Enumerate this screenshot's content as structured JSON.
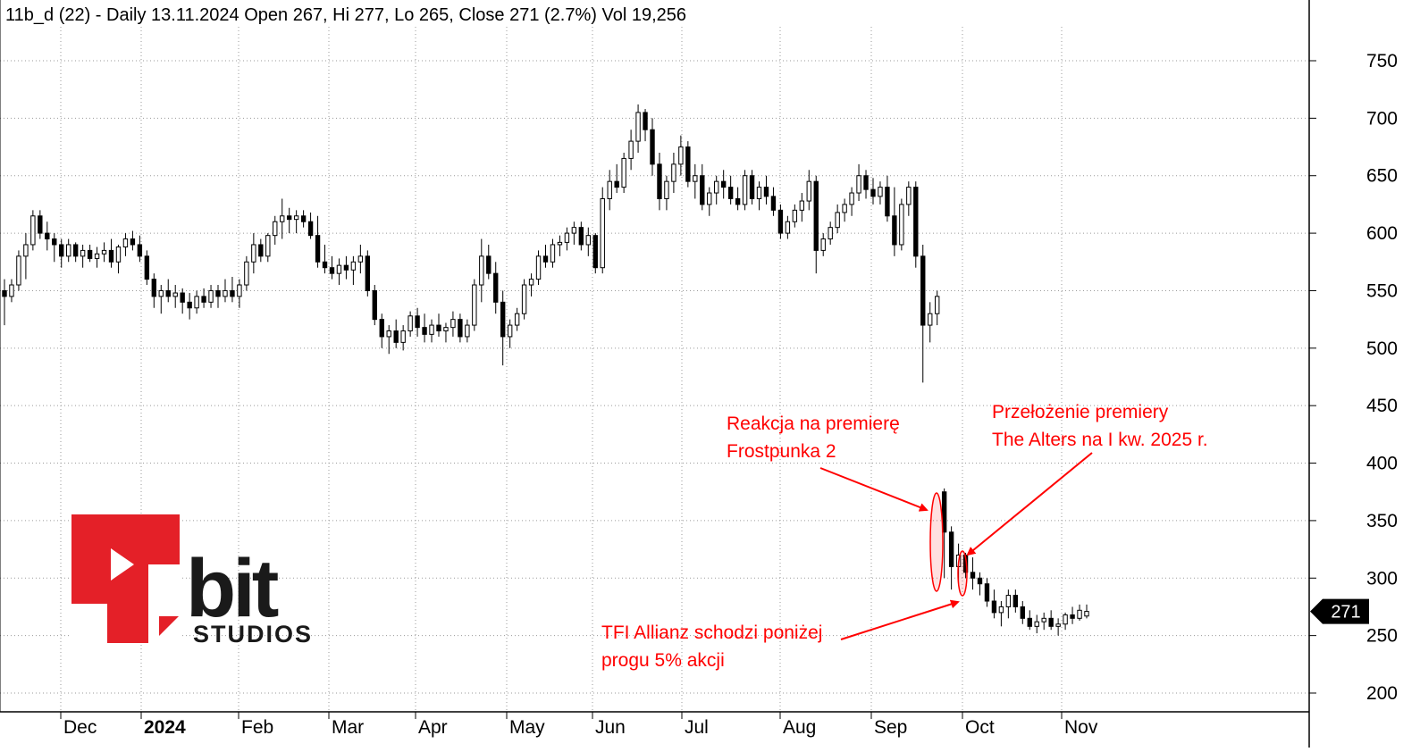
{
  "chart_data": {
    "type": "candlestick",
    "title": "11b_d (22) - Daily 13.11.2024 Open 267, Hi 277, Lo 265, Close 271 (2.7%) Vol 19,256",
    "last_price_label": "271",
    "yticks": [
      200,
      250,
      300,
      350,
      400,
      450,
      500,
      550,
      600,
      650,
      700,
      750
    ],
    "ylim": [
      190,
      790
    ],
    "xlabels": [
      "Dec",
      "2024",
      "Feb",
      "Mar",
      "Apr",
      "May",
      "Jun",
      "Jul",
      "Aug",
      "Sep",
      "Oct",
      "Nov"
    ],
    "grid": true,
    "annotations": [
      {
        "text_lines": [
          "Reakcja na premierę",
          "Frostpunka 2"
        ]
      },
      {
        "text_lines": [
          "Przełożenie premiery",
          "The Alters na I kw. 2025 r."
        ]
      },
      {
        "text_lines": [
          "TFI Allianz schodzi poniżej",
          "progu 5% akcji"
        ]
      }
    ],
    "series": [
      {
        "values": [
          [
            550,
            560,
            520,
            545
          ],
          [
            545,
            560,
            540,
            555
          ],
          [
            555,
            585,
            550,
            580
          ],
          [
            580,
            600,
            560,
            590
          ],
          [
            590,
            620,
            585,
            615
          ],
          [
            615,
            620,
            595,
            600
          ],
          [
            600,
            610,
            585,
            595
          ],
          [
            595,
            600,
            575,
            590
          ],
          [
            590,
            595,
            570,
            580
          ],
          [
            580,
            595,
            575,
            590
          ],
          [
            590,
            592,
            575,
            580
          ],
          [
            580,
            590,
            570,
            585
          ],
          [
            585,
            590,
            575,
            578
          ],
          [
            578,
            588,
            570,
            582
          ],
          [
            582,
            592,
            575,
            585
          ],
          [
            585,
            595,
            570,
            575
          ],
          [
            575,
            590,
            565,
            588
          ],
          [
            588,
            600,
            580,
            595
          ],
          [
            595,
            602,
            585,
            590
          ],
          [
            590,
            598,
            575,
            580
          ],
          [
            580,
            585,
            555,
            560
          ],
          [
            560,
            565,
            535,
            545
          ],
          [
            545,
            555,
            530,
            550
          ],
          [
            550,
            560,
            540,
            545
          ],
          [
            545,
            555,
            535,
            548
          ],
          [
            548,
            552,
            530,
            540
          ],
          [
            540,
            548,
            525,
            535
          ],
          [
            535,
            550,
            530,
            545
          ],
          [
            545,
            552,
            535,
            540
          ],
          [
            540,
            555,
            535,
            550
          ],
          [
            550,
            555,
            535,
            545
          ],
          [
            545,
            560,
            540,
            550
          ],
          [
            550,
            562,
            540,
            545
          ],
          [
            545,
            560,
            535,
            555
          ],
          [
            555,
            580,
            550,
            575
          ],
          [
            575,
            600,
            565,
            590
          ],
          [
            590,
            595,
            575,
            580
          ],
          [
            580,
            600,
            575,
            598
          ],
          [
            598,
            615,
            590,
            610
          ],
          [
            610,
            630,
            595,
            615
          ],
          [
            615,
            622,
            600,
            612
          ],
          [
            612,
            620,
            600,
            615
          ],
          [
            615,
            620,
            605,
            610
          ],
          [
            610,
            618,
            595,
            598
          ],
          [
            598,
            615,
            570,
            575
          ],
          [
            575,
            590,
            565,
            570
          ],
          [
            570,
            580,
            560,
            565
          ],
          [
            565,
            578,
            555,
            572
          ],
          [
            572,
            580,
            560,
            568
          ],
          [
            568,
            580,
            555,
            575
          ],
          [
            575,
            590,
            565,
            580
          ],
          [
            580,
            585,
            545,
            550
          ],
          [
            550,
            555,
            520,
            525
          ],
          [
            525,
            530,
            500,
            510
          ],
          [
            510,
            520,
            495,
            515
          ],
          [
            515,
            525,
            500,
            505
          ],
          [
            505,
            520,
            498,
            515
          ],
          [
            515,
            532,
            510,
            528
          ],
          [
            528,
            535,
            510,
            518
          ],
          [
            518,
            530,
            505,
            512
          ],
          [
            512,
            525,
            505,
            520
          ],
          [
            520,
            530,
            510,
            515
          ],
          [
            515,
            522,
            505,
            518
          ],
          [
            518,
            532,
            510,
            525
          ],
          [
            525,
            530,
            505,
            510
          ],
          [
            510,
            525,
            505,
            520
          ],
          [
            520,
            560,
            515,
            555
          ],
          [
            555,
            595,
            540,
            580
          ],
          [
            580,
            590,
            560,
            565
          ],
          [
            565,
            575,
            530,
            540
          ],
          [
            540,
            550,
            485,
            510
          ],
          [
            510,
            525,
            500,
            520
          ],
          [
            520,
            535,
            515,
            530
          ],
          [
            530,
            560,
            525,
            555
          ],
          [
            555,
            565,
            545,
            560
          ],
          [
            560,
            585,
            555,
            580
          ],
          [
            580,
            590,
            570,
            575
          ],
          [
            575,
            595,
            570,
            590
          ],
          [
            590,
            598,
            580,
            592
          ],
          [
            592,
            605,
            585,
            600
          ],
          [
            600,
            610,
            590,
            605
          ],
          [
            605,
            610,
            585,
            590
          ],
          [
            590,
            605,
            580,
            598
          ],
          [
            598,
            600,
            565,
            570
          ],
          [
            570,
            640,
            565,
            630
          ],
          [
            630,
            655,
            620,
            645
          ],
          [
            645,
            660,
            635,
            640
          ],
          [
            640,
            670,
            635,
            665
          ],
          [
            665,
            690,
            655,
            680
          ],
          [
            680,
            712,
            670,
            705
          ],
          [
            705,
            708,
            680,
            690
          ],
          [
            690,
            700,
            650,
            660
          ],
          [
            660,
            670,
            620,
            630
          ],
          [
            630,
            650,
            620,
            645
          ],
          [
            645,
            670,
            635,
            660
          ],
          [
            660,
            685,
            650,
            675
          ],
          [
            675,
            680,
            640,
            645
          ],
          [
            645,
            660,
            630,
            650
          ],
          [
            650,
            660,
            620,
            625
          ],
          [
            625,
            640,
            615,
            635
          ],
          [
            635,
            650,
            625,
            645
          ],
          [
            645,
            655,
            630,
            640
          ],
          [
            640,
            650,
            625,
            630
          ],
          [
            630,
            640,
            620,
            625
          ],
          [
            625,
            655,
            620,
            650
          ],
          [
            650,
            655,
            625,
            630
          ],
          [
            630,
            645,
            620,
            640
          ],
          [
            640,
            650,
            625,
            632
          ],
          [
            632,
            640,
            615,
            620
          ],
          [
            620,
            625,
            595,
            600
          ],
          [
            600,
            615,
            595,
            610
          ],
          [
            610,
            625,
            605,
            620
          ],
          [
            620,
            635,
            610,
            628
          ],
          [
            628,
            655,
            620,
            645
          ],
          [
            645,
            650,
            565,
            585
          ],
          [
            585,
            600,
            580,
            595
          ],
          [
            595,
            610,
            590,
            605
          ],
          [
            605,
            625,
            600,
            618
          ],
          [
            618,
            630,
            610,
            625
          ],
          [
            625,
            640,
            615,
            635
          ],
          [
            635,
            660,
            628,
            650
          ],
          [
            650,
            655,
            630,
            638
          ],
          [
            638,
            648,
            625,
            632
          ],
          [
            632,
            645,
            625,
            640
          ],
          [
            640,
            650,
            610,
            615
          ],
          [
            615,
            640,
            580,
            590
          ],
          [
            590,
            630,
            585,
            625
          ],
          [
            625,
            645,
            615,
            640
          ],
          [
            640,
            645,
            570,
            580
          ],
          [
            580,
            590,
            470,
            520
          ],
          [
            520,
            540,
            505,
            530
          ],
          [
            530,
            550,
            520,
            545
          ],
          [
            375,
            378,
            300,
            340
          ],
          [
            340,
            345,
            290,
            310
          ],
          [
            310,
            330,
            295,
            320
          ],
          [
            320,
            322,
            300,
            305
          ],
          [
            305,
            318,
            290,
            300
          ],
          [
            300,
            305,
            285,
            295
          ],
          [
            295,
            300,
            275,
            280
          ],
          [
            280,
            290,
            265,
            270
          ],
          [
            270,
            280,
            258,
            275
          ],
          [
            275,
            290,
            265,
            285
          ],
          [
            285,
            290,
            270,
            275
          ],
          [
            275,
            280,
            260,
            265
          ],
          [
            265,
            272,
            255,
            258
          ],
          [
            258,
            268,
            252,
            262
          ],
          [
            262,
            270,
            255,
            265
          ],
          [
            265,
            272,
            255,
            258
          ],
          [
            258,
            265,
            250,
            260
          ],
          [
            260,
            270,
            255,
            268
          ],
          [
            268,
            275,
            260,
            265
          ],
          [
            265,
            277,
            263,
            272
          ],
          [
            267,
            277,
            265,
            271
          ]
        ]
      }
    ]
  },
  "logo": {
    "brand": "11 bit studios",
    "word": "bit",
    "sub": "STUDIOS"
  }
}
